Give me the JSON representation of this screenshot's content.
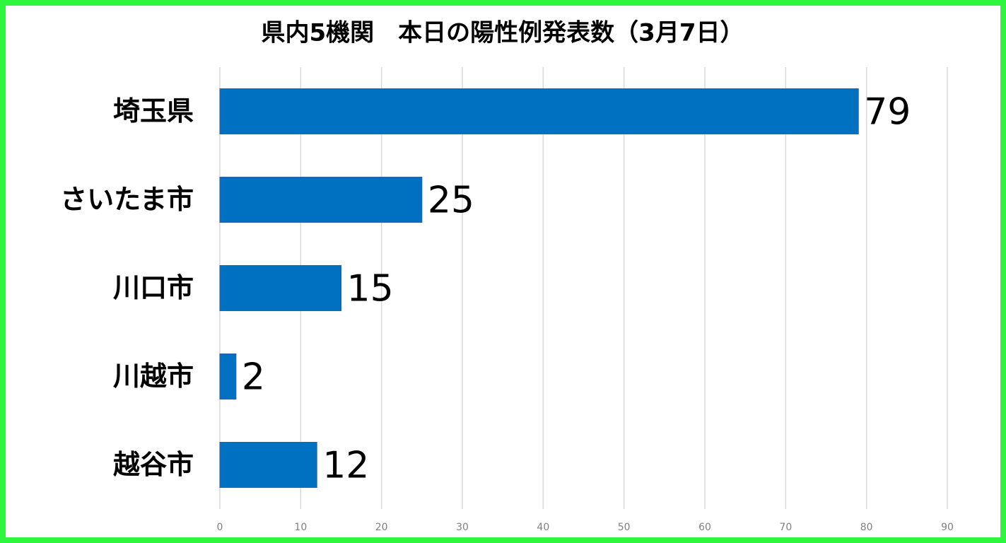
{
  "chart_data": {
    "type": "bar",
    "orientation": "horizontal",
    "title": "県内5機関　本日の陽性例発表数（3月7日）",
    "categories": [
      "埼玉県",
      "さいたま市",
      "川口市",
      "川越市",
      "越谷市"
    ],
    "values": [
      79,
      25,
      15,
      2,
      12
    ],
    "color": "#0070c0",
    "xlim": [
      0,
      90
    ],
    "xticks": [
      0,
      10,
      20,
      30,
      40,
      50,
      60,
      70,
      80,
      90
    ],
    "grid": true
  }
}
